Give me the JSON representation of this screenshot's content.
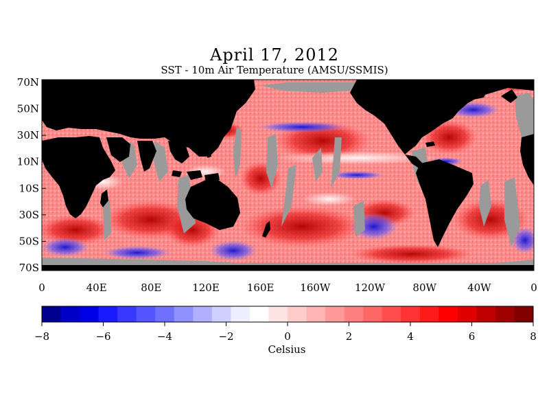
{
  "title": "April 17, 2012",
  "subtitle": "SST - 10m Air Temperature (AMSU/SSMIS)",
  "colors": {
    "land": "#000000",
    "missing": "#9a9a9a",
    "ocean_base": "#ff8a8a"
  },
  "map": {
    "lat_labels": [
      "70N",
      "50N",
      "30N",
      "10N",
      "10S",
      "30S",
      "50S",
      "70S"
    ],
    "lon_labels": [
      "0",
      "40E",
      "80E",
      "120E",
      "160E",
      "160W",
      "120W",
      "80W",
      "40W",
      "0"
    ]
  },
  "colorbar": {
    "unit": "Celsius",
    "min": -8,
    "max": 8,
    "tick_labels": [
      "−8",
      "−6",
      "−4",
      "−2",
      "0",
      "2",
      "4",
      "6",
      "8"
    ],
    "colors": [
      "#00008f",
      "#0000c8",
      "#0000e6",
      "#1a1aff",
      "#3838ff",
      "#5555ff",
      "#7070ff",
      "#9090ff",
      "#b0b0ff",
      "#d0d0ff",
      "#eeeeff",
      "#ffffff",
      "#ffe4e4",
      "#ffcccc",
      "#ffb4b4",
      "#ff9a9a",
      "#ff8080",
      "#ff6666",
      "#ff4d4d",
      "#ff3333",
      "#ff1a1a",
      "#ff0000",
      "#e00000",
      "#c00000",
      "#a00000",
      "#800000"
    ]
  }
}
